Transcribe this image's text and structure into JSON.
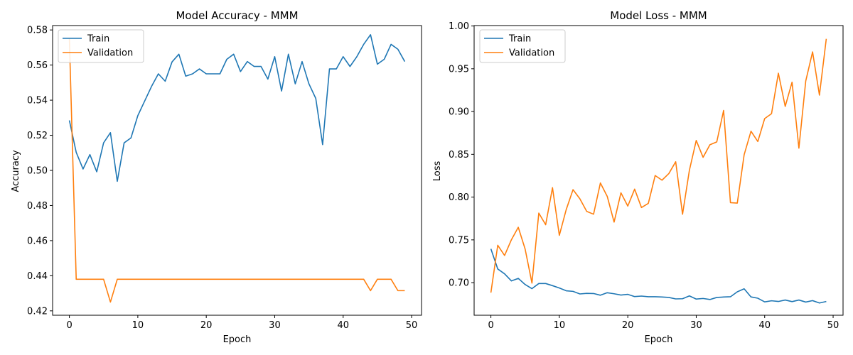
{
  "colors": {
    "train": "#1f77b4",
    "validation": "#ff7f0e"
  },
  "chart_data": [
    {
      "type": "line",
      "title": "Model Accuracy - MMM",
      "xlabel": "Epoch",
      "ylabel": "Accuracy",
      "xlim": [
        -2.45,
        51.45
      ],
      "ylim": [
        0.4175,
        0.5825
      ],
      "xticks": [
        0,
        10,
        20,
        30,
        40,
        50
      ],
      "yticks": [
        0.42,
        0.44,
        0.46,
        0.48,
        0.5,
        0.52,
        0.54,
        0.56,
        0.58
      ],
      "ytick_labels": [
        "0.42",
        "0.44",
        "0.46",
        "0.48",
        "0.50",
        "0.52",
        "0.54",
        "0.56",
        "0.58"
      ],
      "legend": "top-left",
      "grid": false,
      "series": [
        {
          "name": "Train",
          "color": "#1f77b4",
          "values": [
            0.5285,
            0.5103,
            0.5008,
            0.509,
            0.4992,
            0.5157,
            0.5215,
            0.4938,
            0.5157,
            0.5185,
            0.5312,
            0.5395,
            0.5478,
            0.555,
            0.5508,
            0.5618,
            0.5662,
            0.5537,
            0.555,
            0.5578,
            0.555,
            0.555,
            0.555,
            0.5633,
            0.5662,
            0.5563,
            0.562,
            0.5592,
            0.5592,
            0.552,
            0.5648,
            0.5452,
            0.5662,
            0.5493,
            0.562,
            0.5493,
            0.541,
            0.5147,
            0.5578,
            0.5578,
            0.5648,
            0.5592,
            0.5648,
            0.5718,
            0.5773,
            0.5605,
            0.5633,
            0.5718,
            0.569,
            0.562
          ]
        },
        {
          "name": "Validation",
          "color": "#ff7f0e",
          "values": [
            0.575,
            0.438,
            0.438,
            0.438,
            0.438,
            0.438,
            0.425,
            0.438,
            0.438,
            0.438,
            0.438,
            0.438,
            0.438,
            0.438,
            0.438,
            0.438,
            0.438,
            0.438,
            0.438,
            0.438,
            0.438,
            0.438,
            0.438,
            0.438,
            0.438,
            0.438,
            0.438,
            0.438,
            0.438,
            0.438,
            0.438,
            0.438,
            0.438,
            0.438,
            0.438,
            0.438,
            0.438,
            0.438,
            0.438,
            0.438,
            0.438,
            0.438,
            0.438,
            0.438,
            0.4315,
            0.438,
            0.438,
            0.438,
            0.4315,
            0.4315
          ]
        }
      ]
    },
    {
      "type": "line",
      "title": "Model Loss - MMM",
      "xlabel": "Epoch",
      "ylabel": "Loss",
      "xlim": [
        -2.45,
        51.45
      ],
      "ylim": [
        0.6619,
        1.0005
      ],
      "xticks": [
        0,
        10,
        20,
        30,
        40,
        50
      ],
      "yticks": [
        0.7,
        0.75,
        0.8,
        0.85,
        0.9,
        0.95,
        1.0
      ],
      "ytick_labels": [
        "0.70",
        "0.75",
        "0.80",
        "0.85",
        "0.90",
        "0.95",
        "1.00"
      ],
      "legend": "top-left",
      "grid": false,
      "series": [
        {
          "name": "Train",
          "color": "#1f77b4",
          "values": [
            0.7395,
            0.716,
            0.7103,
            0.702,
            0.705,
            0.6978,
            0.693,
            0.699,
            0.699,
            0.6965,
            0.6937,
            0.6905,
            0.6898,
            0.6868,
            0.6875,
            0.6873,
            0.6853,
            0.6882,
            0.687,
            0.6855,
            0.6863,
            0.6837,
            0.6843,
            0.6835,
            0.6835,
            0.6832,
            0.6827,
            0.681,
            0.6812,
            0.6845,
            0.6808,
            0.6815,
            0.6803,
            0.6827,
            0.6832,
            0.6835,
            0.6893,
            0.6928,
            0.6833,
            0.6818,
            0.6775,
            0.6788,
            0.678,
            0.6797,
            0.6778,
            0.6797,
            0.6773,
            0.679,
            0.6762,
            0.678
          ]
        },
        {
          "name": "Validation",
          "color": "#ff7f0e",
          "values": [
            0.6883,
            0.7437,
            0.7318,
            0.7502,
            0.7647,
            0.7393,
            0.6995,
            0.7813,
            0.7677,
            0.811,
            0.7553,
            0.7853,
            0.8087,
            0.798,
            0.7833,
            0.78,
            0.8165,
            0.8008,
            0.7708,
            0.805,
            0.7895,
            0.8093,
            0.7878,
            0.7927,
            0.8252,
            0.8198,
            0.8275,
            0.8413,
            0.78,
            0.8313,
            0.8662,
            0.8465,
            0.8612,
            0.8645,
            0.9013,
            0.7935,
            0.793,
            0.8495,
            0.877,
            0.865,
            0.8918,
            0.8975,
            0.9448,
            0.906,
            0.9343,
            0.8572,
            0.9357,
            0.9697,
            0.9192,
            0.985
          ]
        }
      ]
    }
  ]
}
